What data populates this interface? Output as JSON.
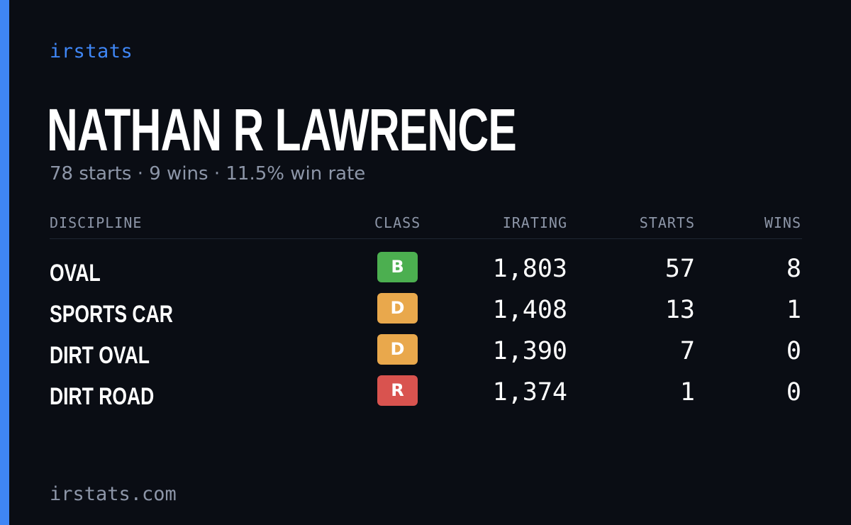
{
  "brand": "irstats",
  "driver_name": "NATHAN R LAWRENCE",
  "summary": "78 starts · 9 wins · 11.5% win rate",
  "table": {
    "headers": {
      "discipline": "DISCIPLINE",
      "class": "CLASS",
      "irating": "IRATING",
      "starts": "STARTS",
      "wins": "WINS"
    },
    "rows": [
      {
        "discipline": "OVAL",
        "class": "B",
        "class_color": "#4caf50",
        "irating": "1,803",
        "starts": "57",
        "wins": "8"
      },
      {
        "discipline": "SPORTS CAR",
        "class": "D",
        "class_color": "#e9a84c",
        "irating": "1,408",
        "starts": "13",
        "wins": "1"
      },
      {
        "discipline": "DIRT OVAL",
        "class": "D",
        "class_color": "#e9a84c",
        "irating": "1,390",
        "starts": "7",
        "wins": "0"
      },
      {
        "discipline": "DIRT ROAD",
        "class": "R",
        "class_color": "#d9534f",
        "irating": "1,374",
        "starts": "1",
        "wins": "0"
      }
    ]
  },
  "footer": "irstats.com",
  "colors": {
    "accent": "#3f86f5",
    "background": "#0a0d14",
    "muted_text": "#8d96a8"
  }
}
